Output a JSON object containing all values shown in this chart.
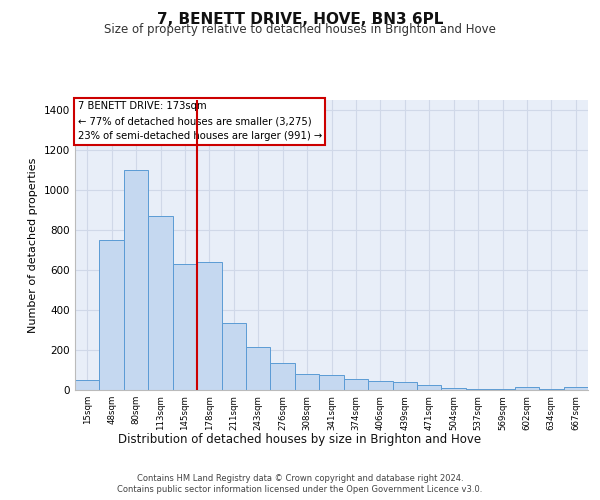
{
  "title": "7, BENETT DRIVE, HOVE, BN3 6PL",
  "subtitle": "Size of property relative to detached houses in Brighton and Hove",
  "xlabel": "Distribution of detached houses by size in Brighton and Hove",
  "ylabel": "Number of detached properties",
  "footer1": "Contains HM Land Registry data © Crown copyright and database right 2024.",
  "footer2": "Contains public sector information licensed under the Open Government Licence v3.0.",
  "annotation_line1": "7 BENETT DRIVE: 173sqm",
  "annotation_line2": "← 77% of detached houses are smaller (3,275)",
  "annotation_line3": "23% of semi-detached houses are larger (991) →",
  "bar_color": "#c5d8f0",
  "bar_edge_color": "#5b9bd5",
  "vline_color": "#cc0000",
  "vline_x_index": 5,
  "categories": [
    "15sqm",
    "48sqm",
    "80sqm",
    "113sqm",
    "145sqm",
    "178sqm",
    "211sqm",
    "243sqm",
    "276sqm",
    "308sqm",
    "341sqm",
    "374sqm",
    "406sqm",
    "439sqm",
    "471sqm",
    "504sqm",
    "537sqm",
    "569sqm",
    "602sqm",
    "634sqm",
    "667sqm"
  ],
  "values": [
    50,
    750,
    1100,
    870,
    630,
    640,
    335,
    215,
    135,
    80,
    75,
    55,
    45,
    38,
    25,
    10,
    5,
    5,
    15,
    5,
    15
  ],
  "ylim": [
    0,
    1450
  ],
  "yticks": [
    0,
    200,
    400,
    600,
    800,
    1000,
    1200,
    1400
  ],
  "grid_color": "#d0d8e8",
  "background_color": "#e8eef8",
  "title_fontsize": 11,
  "subtitle_fontsize": 8.5
}
